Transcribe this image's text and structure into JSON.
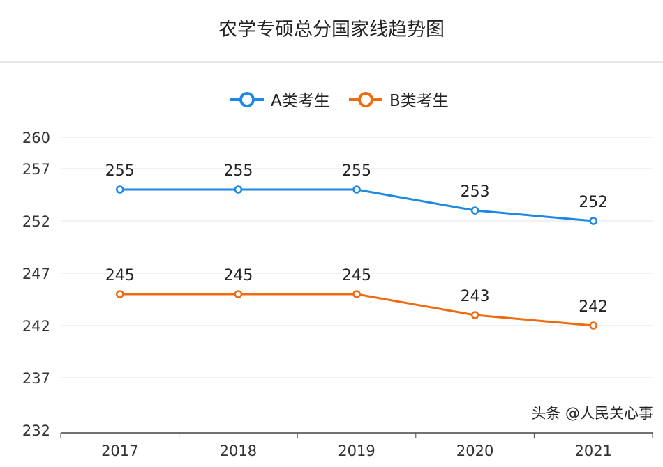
{
  "chart_data": {
    "type": "line",
    "title": "农学专硕总分国家线趋势图",
    "categories": [
      "2017",
      "2018",
      "2019",
      "2020",
      "2021"
    ],
    "series": [
      {
        "name": "A类考生",
        "values": [
          255,
          255,
          255,
          253,
          252
        ],
        "color": "#1e88e5"
      },
      {
        "name": "B类考生",
        "values": [
          245,
          245,
          245,
          243,
          242
        ],
        "color": "#f06a0f"
      }
    ],
    "yticks": [
      232,
      237,
      242,
      247,
      252,
      257,
      260
    ],
    "ylim": [
      232,
      260
    ],
    "xlabel": "",
    "ylabel": "",
    "grid": true,
    "legend": "top-center",
    "data_labels": true
  },
  "watermark": "头条 @人民关心事"
}
